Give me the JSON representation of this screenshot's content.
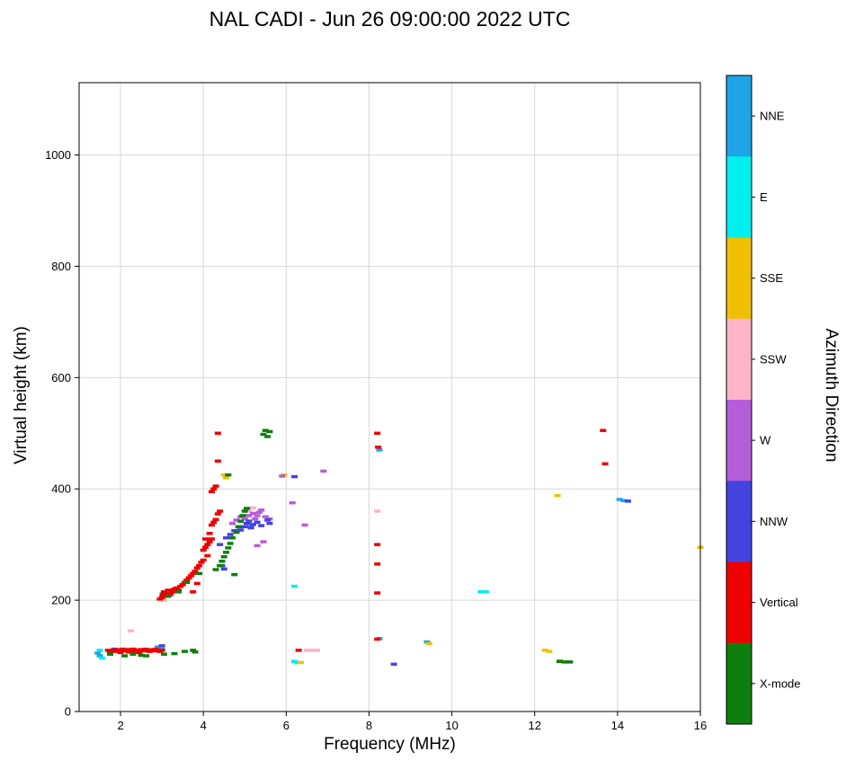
{
  "chart_data": {
    "type": "scatter",
    "title": "NAL CADI - Jun 26 09:00:00 2022 UTC",
    "xlabel": "Frequency (MHz)",
    "ylabel": "Virtual height (km)",
    "xlim": [
      1,
      16
    ],
    "ylim": [
      0,
      1130
    ],
    "xticks": [
      2,
      4,
      6,
      8,
      10,
      12,
      14,
      16
    ],
    "yticks": [
      0,
      200,
      400,
      600,
      800,
      1000
    ],
    "grid": true,
    "marker_shape": "horizontal-dash",
    "colorbar": {
      "label": "Azimuth Direction",
      "entries": [
        {
          "label": "NNE",
          "color": "#1EA5E8"
        },
        {
          "label": "E",
          "color": "#00EFEF"
        },
        {
          "label": "SSE",
          "color": "#F0C000"
        },
        {
          "label": "SSW",
          "color": "#FFB3C8"
        },
        {
          "label": "W",
          "color": "#B55CD9"
        },
        {
          "label": "NNW",
          "color": "#4343DF"
        },
        {
          "label": "Vertical",
          "color": "#EE0000"
        },
        {
          "label": "X-mode",
          "color": "#0E7F0E"
        }
      ]
    },
    "series": [
      {
        "name": "NNE",
        "color": "#1EA5E8",
        "points": [
          [
            1.45,
            105
          ],
          [
            1.5,
            100
          ],
          [
            2.9,
            116
          ],
          [
            3.0,
            112
          ],
          [
            5.15,
            332
          ],
          [
            8.25,
            470
          ],
          [
            8.25,
            131
          ],
          [
            9.4,
            125
          ],
          [
            14.05,
            381
          ],
          [
            14.15,
            379
          ]
        ]
      },
      {
        "name": "E",
        "color": "#00EFEF",
        "points": [
          [
            1.5,
            110
          ],
          [
            1.55,
            96
          ],
          [
            3.02,
            212
          ],
          [
            6.2,
            225
          ],
          [
            6.2,
            90
          ],
          [
            6.28,
            88
          ],
          [
            10.7,
            215
          ],
          [
            10.82,
            215
          ]
        ]
      },
      {
        "name": "SSE",
        "color": "#F0C000",
        "points": [
          [
            2.2,
            112
          ],
          [
            4.5,
            425
          ],
          [
            4.55,
            420
          ],
          [
            5.95,
            425
          ],
          [
            6.35,
            88
          ],
          [
            9.45,
            122
          ],
          [
            12.25,
            110
          ],
          [
            12.35,
            108
          ],
          [
            12.55,
            388
          ],
          [
            12.62,
            91
          ],
          [
            16.0,
            295
          ]
        ]
      },
      {
        "name": "SSW",
        "color": "#FFB3C8",
        "points": [
          [
            2.25,
            145
          ],
          [
            2.4,
            112
          ],
          [
            3.05,
            200
          ],
          [
            5.1,
            360
          ],
          [
            5.2,
            366
          ],
          [
            6.5,
            110
          ],
          [
            6.62,
            110
          ],
          [
            6.74,
            110
          ],
          [
            8.2,
            360
          ]
        ]
      },
      {
        "name": "W",
        "color": "#B55CD9",
        "points": [
          [
            4.7,
            338
          ],
          [
            4.8,
            344
          ],
          [
            4.9,
            350
          ],
          [
            5.0,
            346
          ],
          [
            5.1,
            352
          ],
          [
            5.2,
            356
          ],
          [
            5.25,
            346
          ],
          [
            5.3,
            352
          ],
          [
            5.35,
            358
          ],
          [
            5.4,
            362
          ],
          [
            5.45,
            305
          ],
          [
            5.5,
            350
          ],
          [
            5.6,
            346
          ],
          [
            5.3,
            298
          ],
          [
            5.9,
            423
          ],
          [
            6.15,
            375
          ],
          [
            6.45,
            335
          ],
          [
            6.9,
            432
          ]
        ]
      },
      {
        "name": "NNW",
        "color": "#4343DF",
        "points": [
          [
            1.85,
            112
          ],
          [
            2.25,
            108
          ],
          [
            2.45,
            110
          ],
          [
            3.0,
            118
          ],
          [
            4.4,
            300
          ],
          [
            4.45,
            262
          ],
          [
            4.5,
            256
          ],
          [
            4.55,
            312
          ],
          [
            4.65,
            318
          ],
          [
            4.75,
            325
          ],
          [
            4.85,
            332
          ],
          [
            4.9,
            326
          ],
          [
            5.0,
            332
          ],
          [
            5.05,
            338
          ],
          [
            5.1,
            342
          ],
          [
            5.15,
            330
          ],
          [
            5.2,
            336
          ],
          [
            5.3,
            340
          ],
          [
            5.4,
            334
          ],
          [
            5.55,
            344
          ],
          [
            5.6,
            338
          ],
          [
            6.2,
            422
          ],
          [
            8.6,
            85
          ],
          [
            14.25,
            378
          ]
        ]
      },
      {
        "name": "Vertical",
        "color": "#EE0000",
        "points": [
          [
            1.7,
            110
          ],
          [
            1.75,
            107
          ],
          [
            1.8,
            110
          ],
          [
            1.85,
            108
          ],
          [
            1.9,
            111
          ],
          [
            1.95,
            109
          ],
          [
            2.0,
            106
          ],
          [
            2.05,
            112
          ],
          [
            2.1,
            109
          ],
          [
            2.15,
            111
          ],
          [
            2.2,
            107
          ],
          [
            2.25,
            110
          ],
          [
            2.3,
            112
          ],
          [
            2.35,
            108
          ],
          [
            2.4,
            110
          ],
          [
            2.45,
            106
          ],
          [
            2.5,
            111
          ],
          [
            2.55,
            109
          ],
          [
            2.6,
            112
          ],
          [
            2.65,
            110
          ],
          [
            2.7,
            108
          ],
          [
            2.75,
            111
          ],
          [
            2.8,
            109
          ],
          [
            2.85,
            112
          ],
          [
            2.9,
            110
          ],
          [
            2.95,
            108
          ],
          [
            3.0,
            110
          ],
          [
            2.95,
            202
          ],
          [
            3.0,
            205
          ],
          [
            3.02,
            210
          ],
          [
            3.05,
            215
          ],
          [
            3.08,
            207
          ],
          [
            3.1,
            212
          ],
          [
            3.15,
            218
          ],
          [
            3.2,
            210
          ],
          [
            3.25,
            215
          ],
          [
            3.3,
            220
          ],
          [
            3.35,
            222
          ],
          [
            3.4,
            218
          ],
          [
            3.45,
            225
          ],
          [
            3.5,
            228
          ],
          [
            3.55,
            232
          ],
          [
            3.6,
            236
          ],
          [
            3.65,
            240
          ],
          [
            3.7,
            244
          ],
          [
            3.75,
            215
          ],
          [
            3.75,
            248
          ],
          [
            3.8,
            252
          ],
          [
            3.85,
            230
          ],
          [
            3.85,
            258
          ],
          [
            3.9,
            262
          ],
          [
            3.95,
            268
          ],
          [
            4.0,
            272
          ],
          [
            4.0,
            290
          ],
          [
            4.05,
            295
          ],
          [
            4.05,
            310
          ],
          [
            4.1,
            280
          ],
          [
            4.1,
            300
          ],
          [
            4.15,
            305
          ],
          [
            4.15,
            320
          ],
          [
            4.2,
            310
          ],
          [
            4.2,
            335
          ],
          [
            4.2,
            395
          ],
          [
            4.25,
            340
          ],
          [
            4.25,
            400
          ],
          [
            4.3,
            345
          ],
          [
            4.3,
            405
          ],
          [
            4.35,
            355
          ],
          [
            4.35,
            450
          ],
          [
            4.35,
            500
          ],
          [
            4.4,
            360
          ],
          [
            6.3,
            110
          ],
          [
            8.2,
            500
          ],
          [
            8.22,
            475
          ],
          [
            8.2,
            300
          ],
          [
            8.2,
            265
          ],
          [
            8.2,
            213
          ],
          [
            8.2,
            130
          ],
          [
            13.65,
            505
          ],
          [
            13.7,
            445
          ]
        ]
      },
      {
        "name": "X-mode",
        "color": "#0E7F0E",
        "points": [
          [
            1.75,
            103
          ],
          [
            2.1,
            100
          ],
          [
            2.3,
            103
          ],
          [
            2.5,
            101
          ],
          [
            2.62,
            100
          ],
          [
            3.05,
            103
          ],
          [
            3.3,
            104
          ],
          [
            3.55,
            108
          ],
          [
            3.75,
            110
          ],
          [
            3.8,
            107
          ],
          [
            3.15,
            207
          ],
          [
            3.4,
            215
          ],
          [
            3.6,
            232
          ],
          [
            3.9,
            248
          ],
          [
            4.3,
            255
          ],
          [
            4.4,
            262
          ],
          [
            4.45,
            270
          ],
          [
            4.5,
            278
          ],
          [
            4.55,
            286
          ],
          [
            4.6,
            294
          ],
          [
            4.6,
            425
          ],
          [
            4.65,
            302
          ],
          [
            4.7,
            312
          ],
          [
            4.75,
            246
          ],
          [
            4.8,
            322
          ],
          [
            4.85,
            332
          ],
          [
            4.9,
            342
          ],
          [
            4.95,
            352
          ],
          [
            5.0,
            360
          ],
          [
            5.05,
            365
          ],
          [
            5.45,
            498
          ],
          [
            5.5,
            505
          ],
          [
            5.55,
            494
          ],
          [
            5.6,
            503
          ],
          [
            12.6,
            90
          ],
          [
            12.72,
            89
          ],
          [
            12.85,
            89
          ]
        ]
      }
    ]
  }
}
